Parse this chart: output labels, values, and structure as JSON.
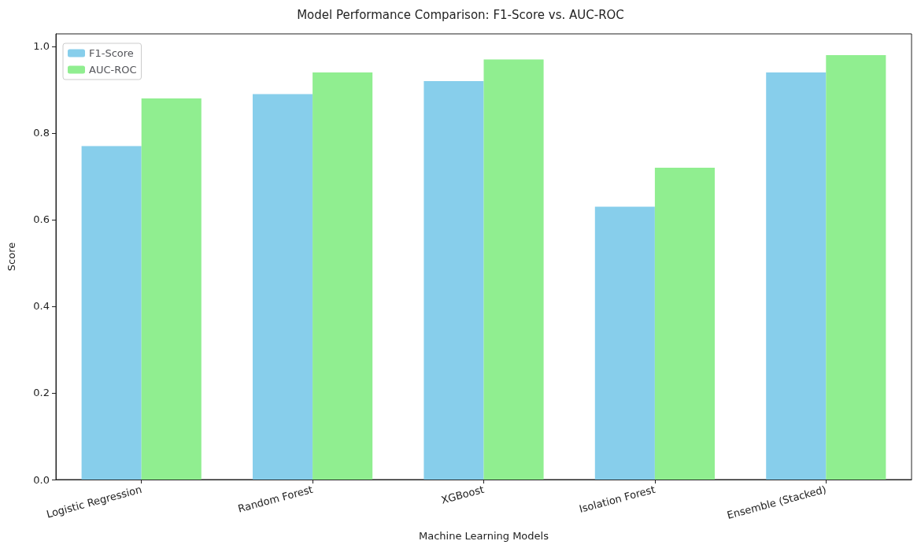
{
  "chart_data": {
    "type": "bar",
    "title": "Model Performance Comparison: F1-Score vs. AUC-ROC",
    "xlabel": "Machine Learning Models",
    "ylabel": "Score",
    "categories": [
      "Logistic Regression",
      "Random Forest",
      "XGBoost",
      "Isolation Forest",
      "Ensemble (Stacked)"
    ],
    "series": [
      {
        "name": "F1-Score",
        "color": "#87ceeb",
        "values": [
          0.77,
          0.89,
          0.92,
          0.63,
          0.94
        ]
      },
      {
        "name": "AUC-ROC",
        "color": "#90ee90",
        "values": [
          0.88,
          0.94,
          0.97,
          0.72,
          0.98
        ]
      }
    ],
    "ylim": [
      0,
      1.029
    ],
    "yticks": [
      {
        "value": 0,
        "label": "0.0"
      },
      0.2,
      0.4,
      0.6,
      0.8,
      {
        "value": 1,
        "label": "1.0"
      }
    ],
    "grid": false,
    "legend": "top left"
  }
}
